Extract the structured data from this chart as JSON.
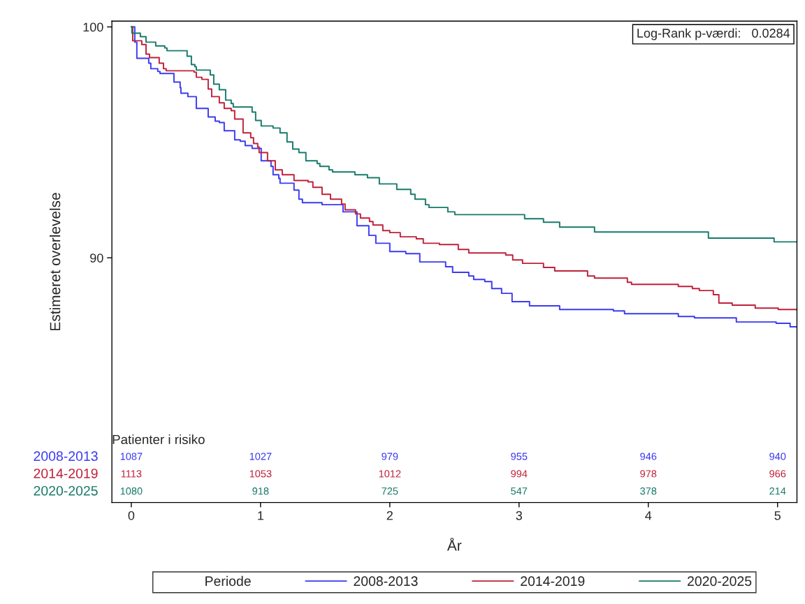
{
  "chart_data": {
    "type": "step",
    "xlabel": "År",
    "ylabel": "Estimeret overlevelse",
    "legend_title": "Periode",
    "xlim": [
      -0.15,
      5.15
    ],
    "ylim": [
      79.4,
      100.25
    ],
    "xticks": [
      0,
      1,
      2,
      3,
      4,
      5
    ],
    "yticks": [
      90,
      100
    ],
    "grid": false,
    "legend": "bottom",
    "series": [
      {
        "name": "2008-2013",
        "color": "#3a3af0",
        "x": [
          0,
          0.027,
          0.043,
          0.135,
          0.151,
          0.205,
          0.222,
          0.33,
          0.378,
          0.384,
          0.438,
          0.503,
          0.595,
          0.649,
          0.681,
          0.719,
          0.8,
          0.843,
          0.881,
          0.935,
          1.005,
          1.081,
          1.097,
          1.141,
          1.151,
          1.259,
          1.297,
          1.324,
          1.476,
          1.546,
          1.638,
          1.746,
          1.838,
          1.892,
          2.0,
          2.124,
          2.232,
          2.432,
          2.486,
          2.611,
          2.649,
          2.735,
          2.789,
          2.865,
          2.946,
          3.081,
          3.314,
          3.73,
          3.816,
          4.232,
          4.357,
          4.681,
          4.989,
          5.097,
          5.15
        ],
        "values": [
          100,
          99.34,
          98.64,
          98.43,
          98.19,
          98.07,
          97.98,
          97.61,
          97.37,
          97.13,
          96.98,
          96.47,
          96.1,
          95.92,
          95.86,
          95.5,
          95.11,
          95.05,
          94.86,
          94.74,
          94.2,
          93.96,
          93.6,
          93.44,
          93.23,
          92.93,
          92.54,
          92.39,
          92.3,
          92.3,
          91.99,
          91.39,
          90.97,
          90.63,
          90.27,
          90.18,
          89.82,
          89.61,
          89.37,
          89.21,
          89.06,
          88.97,
          88.67,
          88.46,
          88.1,
          87.92,
          87.76,
          87.7,
          87.58,
          87.46,
          87.4,
          87.22,
          87.16,
          87.01,
          87.01
        ]
      },
      {
        "name": "2014-2019",
        "color": "#c0203a",
        "x": [
          0,
          0.011,
          0.081,
          0.114,
          0.141,
          0.216,
          0.249,
          0.27,
          0.486,
          0.503,
          0.546,
          0.595,
          0.622,
          0.681,
          0.719,
          0.773,
          0.8,
          0.865,
          0.924,
          0.946,
          0.978,
          0.989,
          1.054,
          1.114,
          1.168,
          1.259,
          1.368,
          1.405,
          1.476,
          1.541,
          1.627,
          1.654,
          1.735,
          1.773,
          1.843,
          1.87,
          1.946,
          2.0,
          2.081,
          2.205,
          2.259,
          2.384,
          2.53,
          2.611,
          2.897,
          2.951,
          3.027,
          3.189,
          3.276,
          3.53,
          3.584,
          3.838,
          3.87,
          4.232,
          4.341,
          4.395,
          4.503,
          4.546,
          4.649,
          4.827,
          5.005,
          5.15
        ],
        "values": [
          100,
          99.4,
          99.24,
          98.82,
          98.67,
          98.43,
          98.19,
          98.1,
          98.04,
          97.82,
          97.73,
          97.31,
          96.98,
          96.71,
          96.47,
          96.37,
          96.01,
          95.41,
          95.2,
          94.95,
          94.8,
          94.56,
          94.2,
          93.81,
          93.6,
          93.35,
          93.29,
          93.05,
          92.75,
          92.54,
          92.33,
          92.08,
          91.9,
          91.72,
          91.57,
          91.42,
          91.18,
          91.09,
          90.91,
          90.82,
          90.63,
          90.57,
          90.36,
          90.21,
          90.12,
          89.91,
          89.76,
          89.58,
          89.43,
          89.21,
          89.12,
          88.94,
          88.85,
          88.76,
          88.67,
          88.58,
          88.4,
          88.04,
          87.95,
          87.82,
          87.76,
          87.73
        ]
      },
      {
        "name": "2020-2025",
        "color": "#167a6a",
        "x": [
          0,
          0.005,
          0.07,
          0.114,
          0.189,
          0.259,
          0.276,
          0.432,
          0.465,
          0.492,
          0.503,
          0.611,
          0.638,
          0.681,
          0.73,
          0.773,
          0.789,
          0.935,
          0.962,
          1.005,
          1.097,
          1.151,
          1.205,
          1.249,
          1.297,
          1.351,
          1.438,
          1.459,
          1.53,
          1.557,
          1.73,
          1.827,
          1.919,
          2.054,
          2.162,
          2.195,
          2.276,
          2.303,
          2.449,
          2.503,
          3.043,
          3.189,
          3.314,
          3.584,
          4.465,
          4.973,
          5.15
        ],
        "values": [
          100,
          99.73,
          99.58,
          99.34,
          99.18,
          99.09,
          98.97,
          98.73,
          98.37,
          98.28,
          98.13,
          97.92,
          97.52,
          97.28,
          96.83,
          96.68,
          96.53,
          96.31,
          95.95,
          95.71,
          95.62,
          95.41,
          95.02,
          94.71,
          94.56,
          94.2,
          94.08,
          93.96,
          93.81,
          93.72,
          93.6,
          93.47,
          93.2,
          92.96,
          92.75,
          92.54,
          92.3,
          92.18,
          91.99,
          91.87,
          91.69,
          91.54,
          91.33,
          91.12,
          90.85,
          90.69,
          90.69
        ]
      }
    ],
    "annotations": [
      "Log-Rank p-værdi:   0.0284",
      "Patienter i risiko",
      "1087",
      "1027",
      "979",
      "955",
      "946",
      "940",
      "1113",
      "1053",
      "1012",
      "994",
      "978",
      "966",
      "1080",
      "918",
      "725",
      "547",
      "378",
      "214"
    ]
  }
}
